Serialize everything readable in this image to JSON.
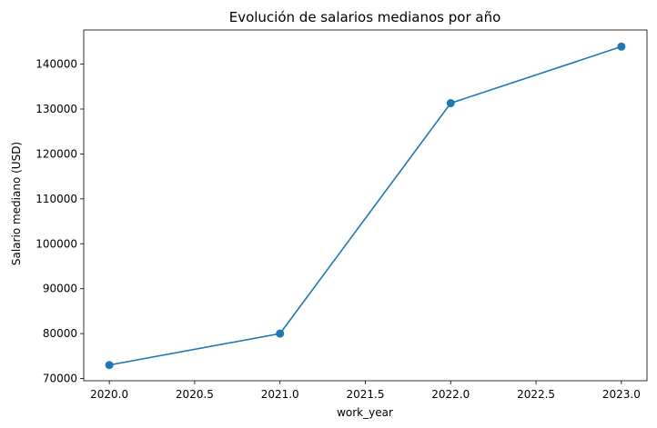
{
  "chart_data": {
    "type": "line",
    "title": "Evolución de salarios medianos por año",
    "xlabel": "work_year",
    "ylabel": "Salario mediano (USD)",
    "x": [
      2020.0,
      2021.0,
      2022.0,
      2023.0
    ],
    "series": [
      {
        "values": [
          73000,
          80000,
          131300,
          143900
        ],
        "color": "#1f77b4",
        "marker": "circle"
      }
    ],
    "xlim": [
      2019.85,
      2023.15
    ],
    "ylim": [
      69500,
      147600
    ],
    "x_ticks": [
      "2020.0",
      "2020.5",
      "2021.0",
      "2021.5",
      "2022.0",
      "2022.5",
      "2023.0"
    ],
    "y_ticks": [
      "70000",
      "80000",
      "90000",
      "100000",
      "110000",
      "120000",
      "130000",
      "140000"
    ],
    "grid": false,
    "legend": "none"
  }
}
